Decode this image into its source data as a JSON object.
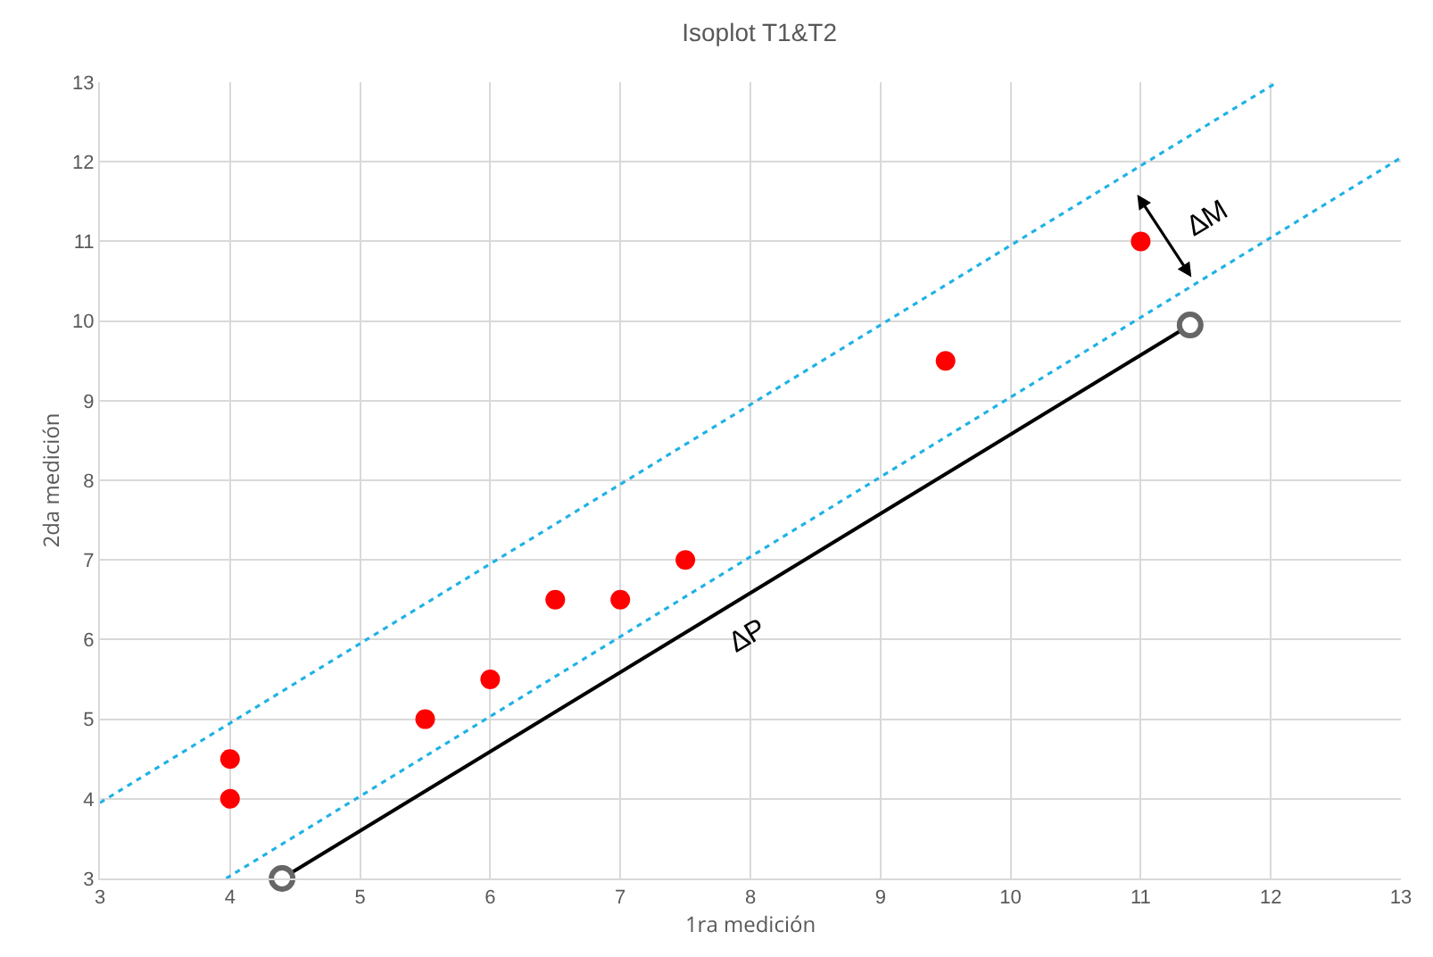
{
  "chart_data": {
    "type": "scatter",
    "title": "Isoplot T1&T2",
    "xlabel": "1ra medición",
    "ylabel": "2da medición",
    "xlim": [
      3,
      13
    ],
    "ylim": [
      3,
      13
    ],
    "xticks": [
      3,
      4,
      5,
      6,
      7,
      8,
      9,
      10,
      11,
      12,
      13
    ],
    "yticks": [
      3,
      4,
      5,
      6,
      7,
      8,
      9,
      10,
      11,
      12,
      13
    ],
    "grid": true,
    "series": [
      {
        "type": "line",
        "color": "#1fb2e6",
        "line_style": "dotted",
        "marker": "none",
        "x": [
          3,
          12.05
        ],
        "values": [
          3.95,
          13
        ]
      },
      {
        "type": "line",
        "color": "#1fb2e6",
        "line_style": "dotted",
        "marker": "none",
        "x": [
          3.97,
          13
        ],
        "values": [
          3,
          12.05
        ]
      },
      {
        "type": "line",
        "color": "#000000",
        "line_style": "solid",
        "marker": "circle",
        "x": [
          4.4,
          11.38
        ],
        "values": [
          3,
          9.95
        ]
      },
      {
        "color": "#ff0000",
        "marker": "circle",
        "x": [
          4,
          4,
          5.5,
          6,
          6.5,
          7,
          7.5,
          9.5,
          11
        ],
        "values": [
          4.5,
          4,
          5,
          5.5,
          6.5,
          6.5,
          7,
          9.5,
          11
        ]
      }
    ],
    "annotations": [
      "∆P",
      "∆M"
    ]
  }
}
